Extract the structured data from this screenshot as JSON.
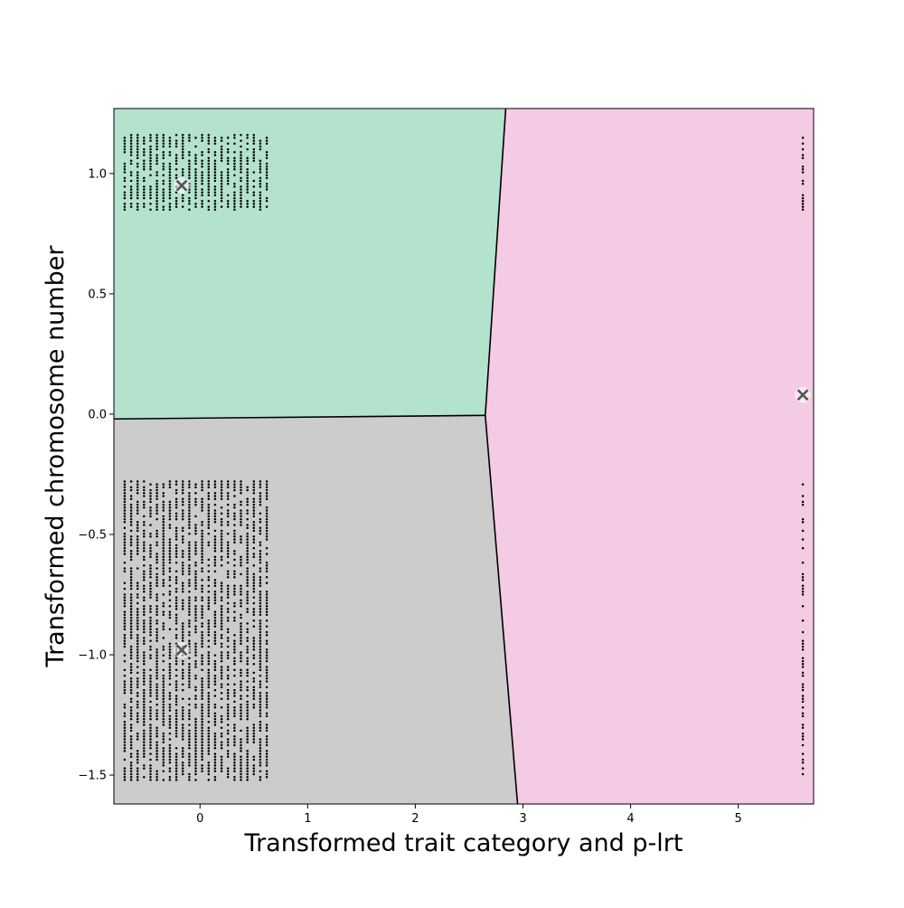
{
  "chart_data": {
    "type": "scatter",
    "title": "",
    "xlabel": "Transformed trait category and p-lrt",
    "ylabel": "Transformed chromosome number",
    "xlim": [
      -0.8,
      5.7
    ],
    "ylim": [
      -1.62,
      1.27
    ],
    "xticks": [
      0,
      1,
      2,
      3,
      4,
      5
    ],
    "xtick_labels": [
      "0",
      "1",
      "2",
      "3",
      "4",
      "5"
    ],
    "yticks": [
      -1.5,
      -1.0,
      -0.5,
      0.0,
      0.5,
      1.0
    ],
    "ytick_labels": [
      "−1.5",
      "−1.0",
      "−0.5",
      "0.0",
      "0.5",
      "1.0"
    ],
    "grid": false,
    "legend": "none",
    "decision_regions": [
      {
        "color": "#b3e2cd",
        "polygon": [
          [
            -0.8,
            1.27
          ],
          [
            2.84,
            1.27
          ],
          [
            2.65,
            -0.005
          ],
          [
            -0.8,
            -0.02
          ]
        ]
      },
      {
        "color": "#f4cae4",
        "polygon": [
          [
            2.84,
            1.27
          ],
          [
            5.7,
            1.27
          ],
          [
            5.7,
            -1.62
          ],
          [
            2.95,
            -1.62
          ],
          [
            2.65,
            -0.005
          ]
        ]
      },
      {
        "color": "#cccccc",
        "polygon": [
          [
            -0.8,
            -0.02
          ],
          [
            2.65,
            -0.005
          ],
          [
            2.95,
            -1.62
          ],
          [
            -0.8,
            -1.62
          ]
        ]
      }
    ],
    "boundary_lines": [
      [
        [
          -0.8,
          -0.02
        ],
        [
          2.65,
          -0.005
        ]
      ],
      [
        [
          2.84,
          1.27
        ],
        [
          2.65,
          -0.005
        ]
      ],
      [
        [
          2.65,
          -0.005
        ],
        [
          2.95,
          -1.62
        ]
      ]
    ],
    "centroids": [
      {
        "x": -0.17,
        "y": 0.95
      },
      {
        "x": -0.17,
        "y": -0.98
      },
      {
        "x": 5.6,
        "y": 0.08
      }
    ],
    "point_columns_x": [
      -0.7,
      -0.64,
      -0.58,
      -0.52,
      -0.46,
      -0.4,
      -0.34,
      -0.28,
      -0.22,
      -0.16,
      -0.1,
      -0.04,
      0.02,
      0.08,
      0.14,
      0.2,
      0.26,
      0.32,
      0.38,
      0.44,
      0.5,
      0.56,
      0.62
    ],
    "point_clusters": [
      {
        "x_columns": "point_columns_x",
        "y_range": [
          0.85,
          1.16
        ],
        "pattern": "dense"
      },
      {
        "x_columns": "point_columns_x",
        "y_range": [
          -1.52,
          -0.28
        ],
        "pattern": "dense"
      },
      {
        "x_columns": [
          5.6
        ],
        "y_range": [
          0.85,
          1.16
        ],
        "pattern": "dense"
      },
      {
        "x_columns": [
          5.6
        ],
        "y_range": [
          -1.52,
          -0.28
        ],
        "pattern": "sparse"
      }
    ],
    "marker_color": "#000000",
    "centroid_color": "#555555"
  }
}
